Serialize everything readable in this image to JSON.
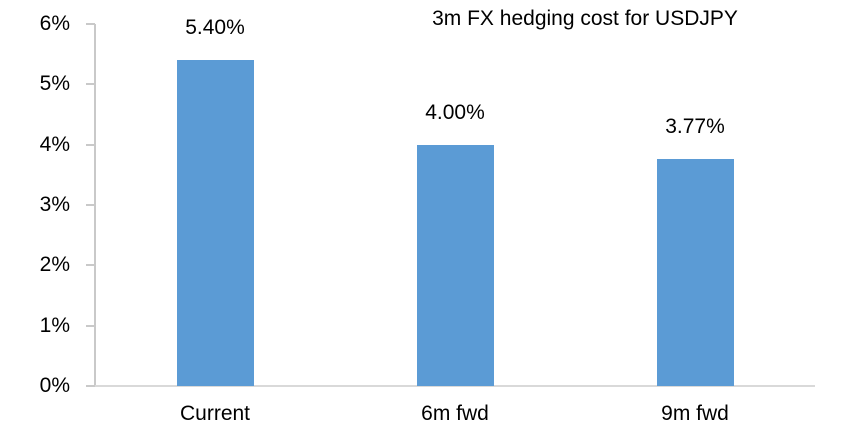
{
  "chart_data": {
    "type": "bar",
    "title": "3m FX hedging cost for USDJPY",
    "categories": [
      "Current",
      "6m fwd",
      "9m fwd"
    ],
    "values": [
      5.4,
      4.0,
      3.77
    ],
    "value_labels": [
      "5.40%",
      "4.00%",
      "3.77%"
    ],
    "ylim": [
      0,
      6
    ],
    "ytick_values": [
      0,
      1,
      2,
      3,
      4,
      5,
      6
    ],
    "ytick_labels": [
      "0%",
      "1%",
      "2%",
      "3%",
      "4%",
      "5%",
      "6%"
    ],
    "xlabel": "",
    "ylabel": "",
    "grid": "off",
    "legend": "none",
    "bar_color": "#5b9bd5",
    "y_axis_color": "#c9c9c9",
    "x_axis_color": "#d9d9d9",
    "text_color": "#000000"
  }
}
